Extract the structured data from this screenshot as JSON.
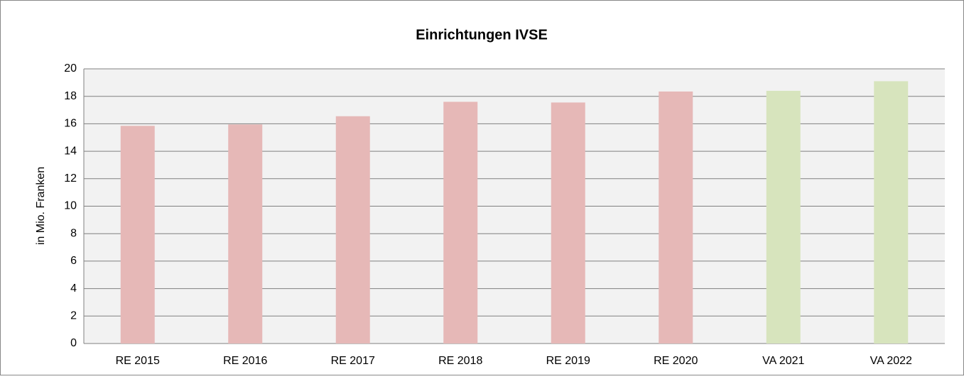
{
  "chart_data": {
    "type": "bar",
    "title": "Einrichtungen IVSE",
    "y_label": "in Mio. Franken",
    "categories": [
      "RE 2015",
      "RE 2016",
      "RE 2017",
      "RE 2018",
      "RE 2019",
      "RE 2020",
      "VA 2021",
      "VA 2022"
    ],
    "values": [
      15.85,
      15.95,
      16.55,
      17.6,
      17.55,
      18.35,
      18.4,
      19.1
    ],
    "colors": [
      "#e6b8b7",
      "#e6b8b7",
      "#e6b8b7",
      "#e6b8b7",
      "#e6b8b7",
      "#e6b8b7",
      "#d7e4bd",
      "#d7e4bd"
    ],
    "ylim": [
      0,
      20
    ],
    "yticks": [
      0,
      2,
      4,
      6,
      8,
      10,
      12,
      14,
      16,
      18,
      20
    ],
    "grid": true
  }
}
